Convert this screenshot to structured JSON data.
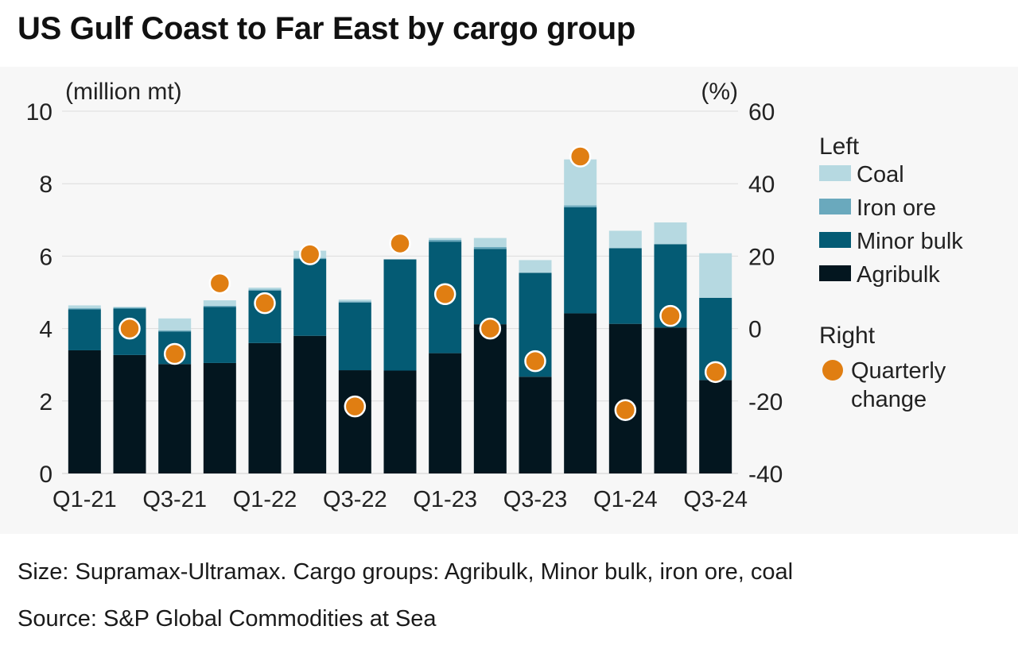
{
  "title": "US Gulf Coast to Far East by cargo group",
  "footer": {
    "note": "Size: Supramax-Ultramax. Cargo groups: Agribulk, Minor bulk, iron ore, coal",
    "source": "Source: S&P Global Commodities at Sea"
  },
  "colors": {
    "coal": "#b6d9e1",
    "iron_ore": "#6aa9bd",
    "minor_bulk": "#045b74",
    "agribulk": "#03161f",
    "quarterly_change": "#e07e12",
    "panel": "#f7f7f7"
  },
  "chart_data": {
    "type": "bar",
    "stacked": true,
    "categories": [
      "Q1-21",
      "Q2-21",
      "Q3-21",
      "Q4-21",
      "Q1-22",
      "Q2-22",
      "Q3-22",
      "Q4-22",
      "Q1-23",
      "Q2-23",
      "Q3-23",
      "Q4-23",
      "Q1-24",
      "Q2-24",
      "Q3-24"
    ],
    "x_tick_labels": [
      "Q1-21",
      "Q3-21",
      "Q1-22",
      "Q3-22",
      "Q1-23",
      "Q3-23",
      "Q1-24",
      "Q3-24"
    ],
    "left_axis": {
      "label": "(million mt)",
      "ylim": [
        0,
        10
      ],
      "ticks": [
        0,
        2,
        4,
        6,
        8,
        10
      ]
    },
    "right_axis": {
      "label": "(%)",
      "ylim": [
        -40,
        60
      ],
      "ticks": [
        -40,
        -20,
        0,
        20,
        40,
        60
      ]
    },
    "legend": {
      "left_header": "Left",
      "right_header": "Right",
      "placement": "right"
    },
    "series": [
      {
        "name": "Agribulk",
        "key": "agribulk",
        "axis": "left",
        "values": [
          3.4,
          3.27,
          3.02,
          3.05,
          3.6,
          3.8,
          2.85,
          2.84,
          3.32,
          4.12,
          2.67,
          4.42,
          4.13,
          4.03,
          2.58
        ]
      },
      {
        "name": "Minor bulk",
        "key": "minor_bulk",
        "axis": "left",
        "values": [
          1.13,
          1.28,
          0.9,
          1.55,
          1.45,
          2.12,
          1.87,
          3.07,
          3.08,
          2.08,
          2.87,
          2.93,
          2.09,
          2.3,
          2.27
        ]
      },
      {
        "name": "Iron ore",
        "key": "iron_ore",
        "axis": "left",
        "values": [
          0.03,
          0.03,
          0.03,
          0.03,
          0.03,
          0.03,
          0.03,
          0.0,
          0.05,
          0.05,
          0.0,
          0.05,
          0.0,
          0.0,
          0.0
        ]
      },
      {
        "name": "Coal",
        "key": "coal",
        "axis": "left",
        "values": [
          0.08,
          0.02,
          0.33,
          0.15,
          0.05,
          0.2,
          0.05,
          0.0,
          0.05,
          0.25,
          0.35,
          1.27,
          0.48,
          0.6,
          1.23
        ]
      },
      {
        "name": "Quarterly change",
        "legend_label_lines": [
          "Quarterly",
          "change"
        ],
        "key": "quarterly_change",
        "axis": "right",
        "type": "scatter",
        "values": [
          null,
          0,
          -7,
          12.5,
          7,
          20.5,
          -21.5,
          23.5,
          9.5,
          0,
          -9,
          47.5,
          -22.5,
          3.5,
          -12
        ]
      }
    ]
  }
}
